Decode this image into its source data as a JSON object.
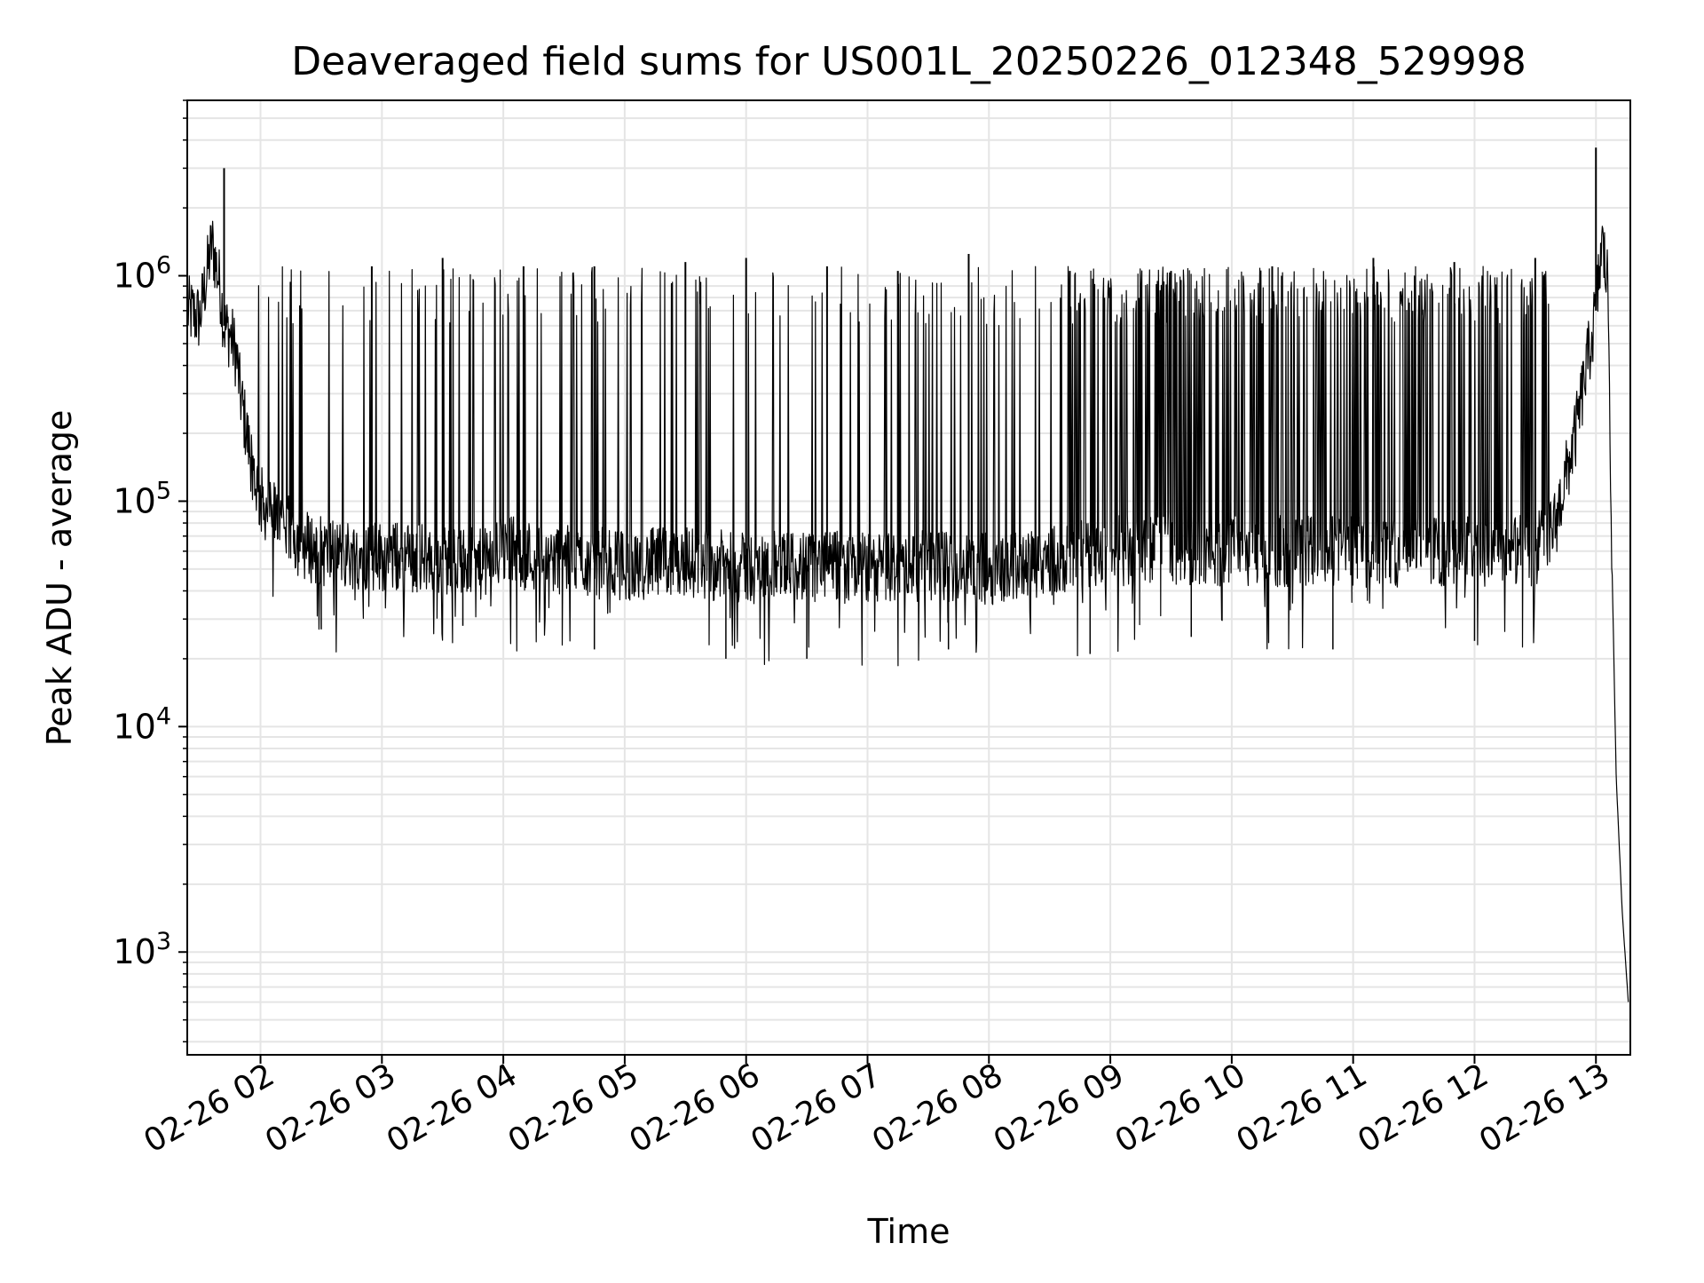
{
  "chart_data": {
    "type": "line",
    "title": "Deaveraged field sums for US001L_20250226_012348_529998",
    "xlabel": "Time",
    "ylabel": "Peak ADU - average",
    "yscale": "log",
    "ylim": [
      350,
      6000000
    ],
    "xlim": [
      "2025-02-26 01:23:48",
      "2025-02-26 13:17:00"
    ],
    "grid": true,
    "legend": "none",
    "line_color": "#000000",
    "grid_color": "#e5e5e5",
    "x_ticks": [
      "02-26 02",
      "02-26 03",
      "02-26 04",
      "02-26 05",
      "02-26 06",
      "02-26 07",
      "02-26 08",
      "02-26 09",
      "02-26 10",
      "02-26 11",
      "02-26 12",
      "02-26 13"
    ],
    "y_ticks": [
      {
        "base": "10",
        "exp": "3"
      },
      {
        "base": "10",
        "exp": "4"
      },
      {
        "base": "10",
        "exp": "5"
      },
      {
        "base": "10",
        "exp": "6"
      }
    ],
    "series": [
      {
        "x": [
          "2025-02-26 01:24",
          "2025-02-26 01:30",
          "2025-02-26 01:36",
          "2025-02-26 01:40",
          "2025-02-26 01:42",
          "2025-02-26 01:45",
          "2025-02-26 01:48",
          "2025-02-26 01:50",
          "2025-02-26 01:54",
          "2025-02-26 01:58",
          "2025-02-26 02:00",
          "2025-02-26 02:05",
          "2025-02-26 02:10",
          "2025-02-26 02:20",
          "2025-02-26 02:30",
          "2025-02-26 02:45",
          "2025-02-26 03:00",
          "2025-02-26 03:30",
          "2025-02-26 03:50",
          "2025-02-26 04:00",
          "2025-02-26 04:30",
          "2025-02-26 05:00",
          "2025-02-26 05:30",
          "2025-02-26 06:00",
          "2025-02-26 06:30",
          "2025-02-26 07:00",
          "2025-02-26 07:30",
          "2025-02-26 08:00",
          "2025-02-26 08:30",
          "2025-02-26 09:00",
          "2025-02-26 09:30",
          "2025-02-26 10:00",
          "2025-02-26 10:30",
          "2025-02-26 11:00",
          "2025-02-26 11:30",
          "2025-02-26 12:00",
          "2025-02-26 12:30",
          "2025-02-26 12:40",
          "2025-02-26 12:50",
          "2025-02-26 13:00",
          "2025-02-26 13:03",
          "2025-02-26 13:06",
          "2025-02-26 13:08",
          "2025-02-26 13:10",
          "2025-02-26 13:13",
          "2025-02-26 13:16"
        ],
        "y": [
          700000,
          650000,
          1400000,
          900000,
          600000,
          550000,
          450000,
          300000,
          180000,
          120000,
          100000,
          90000,
          80000,
          65000,
          60000,
          58000,
          57000,
          55000,
          52000,
          60000,
          55000,
          52000,
          54000,
          50000,
          52000,
          50000,
          52000,
          50000,
          55000,
          60000,
          62000,
          60000,
          60000,
          60000,
          60000,
          60000,
          60000,
          80000,
          200000,
          700000,
          1400000,
          900000,
          50000,
          6000,
          1500,
          600
        ]
      }
    ],
    "peaks": {
      "x": [
        "2025-02-26 01:42",
        "2025-02-26 02:55",
        "2025-02-26 03:30",
        "2025-02-26 04:10",
        "2025-02-26 04:45",
        "2025-02-26 05:30",
        "2025-02-26 06:00",
        "2025-02-26 06:40",
        "2025-02-26 07:15",
        "2025-02-26 07:50",
        "2025-02-26 08:40",
        "2025-02-26 09:30",
        "2025-02-26 10:20",
        "2025-02-26 11:10",
        "2025-02-26 11:50",
        "2025-02-26 12:30",
        "2025-02-26 13:00"
      ],
      "y": [
        3000000,
        1100000,
        1200000,
        1100000,
        1100000,
        1150000,
        1200000,
        1100000,
        1050000,
        1250000,
        1050000,
        1050000,
        1100000,
        1200000,
        1150000,
        1200000,
        3700000
      ]
    },
    "troughs": {
      "x": [
        "2025-02-26 02:30",
        "2025-02-26 03:40",
        "2025-02-26 04:45",
        "2025-02-26 05:50",
        "2025-02-26 06:30",
        "2025-02-26 07:40",
        "2025-02-26 08:50",
        "2025-02-26 09:40",
        "2025-02-26 10:50",
        "2025-02-26 12:00"
      ],
      "y": [
        27000,
        28000,
        22000,
        20000,
        20000,
        22000,
        21000,
        25000,
        22000,
        24000
      ]
    }
  }
}
